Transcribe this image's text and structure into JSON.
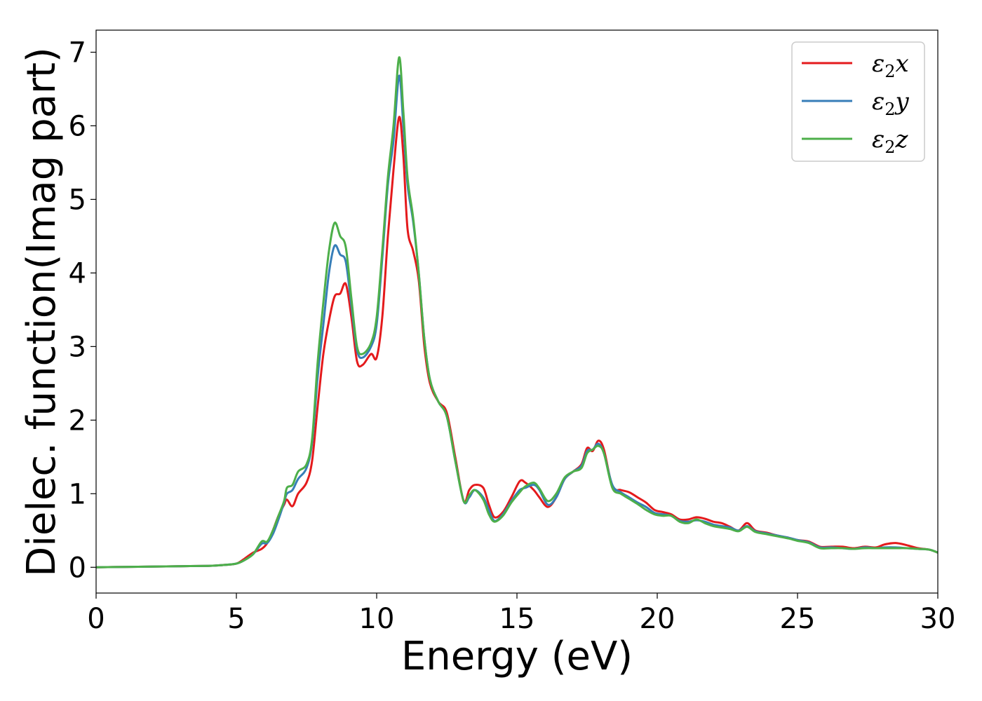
{
  "chart_data": {
    "type": "line",
    "xlabel": "Energy (eV)",
    "ylabel": "Dielec. function(Imag part)",
    "xlim": [
      0,
      30
    ],
    "ylim": [
      -0.35,
      7.3
    ],
    "xticks": [
      0,
      5,
      10,
      15,
      20,
      25,
      30
    ],
    "yticks": [
      0,
      1,
      2,
      3,
      4,
      5,
      6,
      7
    ],
    "grid": false,
    "legend_position": "top-right",
    "series": [
      {
        "name": "ε2x",
        "legend": {
          "base": "ε",
          "sub": "2",
          "suffix": "x"
        },
        "color": "#e41a1c",
        "points": [
          [
            0,
            0.0
          ],
          [
            1,
            0.005
          ],
          [
            2,
            0.01
          ],
          [
            3,
            0.015
          ],
          [
            4,
            0.02
          ],
          [
            4.5,
            0.03
          ],
          [
            5,
            0.05
          ],
          [
            5.3,
            0.12
          ],
          [
            5.6,
            0.2
          ],
          [
            5.9,
            0.25
          ],
          [
            6.1,
            0.33
          ],
          [
            6.3,
            0.5
          ],
          [
            6.5,
            0.7
          ],
          [
            6.7,
            0.85
          ],
          [
            6.8,
            0.92
          ],
          [
            7.0,
            0.83
          ],
          [
            7.2,
            1.0
          ],
          [
            7.5,
            1.15
          ],
          [
            7.7,
            1.45
          ],
          [
            7.9,
            2.2
          ],
          [
            8.1,
            2.9
          ],
          [
            8.3,
            3.35
          ],
          [
            8.5,
            3.68
          ],
          [
            8.7,
            3.72
          ],
          [
            8.9,
            3.85
          ],
          [
            9.1,
            3.4
          ],
          [
            9.3,
            2.8
          ],
          [
            9.5,
            2.75
          ],
          [
            9.8,
            2.9
          ],
          [
            10.0,
            2.85
          ],
          [
            10.2,
            3.4
          ],
          [
            10.4,
            4.5
          ],
          [
            10.6,
            5.4
          ],
          [
            10.8,
            6.12
          ],
          [
            10.95,
            5.6
          ],
          [
            11.1,
            4.6
          ],
          [
            11.3,
            4.3
          ],
          [
            11.5,
            3.9
          ],
          [
            11.7,
            3.0
          ],
          [
            11.9,
            2.5
          ],
          [
            12.2,
            2.25
          ],
          [
            12.5,
            2.1
          ],
          [
            12.8,
            1.5
          ],
          [
            13.1,
            0.9
          ],
          [
            13.3,
            1.05
          ],
          [
            13.5,
            1.12
          ],
          [
            13.8,
            1.08
          ],
          [
            14.0,
            0.85
          ],
          [
            14.2,
            0.68
          ],
          [
            14.5,
            0.75
          ],
          [
            14.8,
            0.95
          ],
          [
            15.1,
            1.17
          ],
          [
            15.3,
            1.15
          ],
          [
            15.6,
            1.05
          ],
          [
            15.8,
            0.95
          ],
          [
            16.1,
            0.82
          ],
          [
            16.4,
            0.95
          ],
          [
            16.7,
            1.2
          ],
          [
            17.0,
            1.3
          ],
          [
            17.3,
            1.4
          ],
          [
            17.5,
            1.62
          ],
          [
            17.7,
            1.58
          ],
          [
            17.9,
            1.72
          ],
          [
            18.1,
            1.6
          ],
          [
            18.4,
            1.1
          ],
          [
            18.7,
            1.05
          ],
          [
            19.0,
            1.02
          ],
          [
            19.3,
            0.95
          ],
          [
            19.6,
            0.88
          ],
          [
            19.9,
            0.78
          ],
          [
            20.2,
            0.75
          ],
          [
            20.5,
            0.72
          ],
          [
            20.8,
            0.65
          ],
          [
            21.1,
            0.65
          ],
          [
            21.4,
            0.68
          ],
          [
            21.7,
            0.66
          ],
          [
            22.0,
            0.62
          ],
          [
            22.3,
            0.6
          ],
          [
            22.6,
            0.55
          ],
          [
            22.9,
            0.5
          ],
          [
            23.2,
            0.6
          ],
          [
            23.5,
            0.5
          ],
          [
            23.9,
            0.47
          ],
          [
            24.3,
            0.43
          ],
          [
            24.7,
            0.4
          ],
          [
            25.0,
            0.37
          ],
          [
            25.4,
            0.35
          ],
          [
            25.8,
            0.28
          ],
          [
            26.2,
            0.28
          ],
          [
            26.6,
            0.28
          ],
          [
            27.0,
            0.26
          ],
          [
            27.4,
            0.28
          ],
          [
            27.8,
            0.27
          ],
          [
            28.1,
            0.31
          ],
          [
            28.5,
            0.33
          ],
          [
            28.9,
            0.3
          ],
          [
            29.3,
            0.26
          ],
          [
            29.7,
            0.24
          ],
          [
            30.0,
            0.2
          ]
        ]
      },
      {
        "name": "ε2y",
        "legend": {
          "base": "ε",
          "sub": "2",
          "suffix": "y"
        },
        "color": "#377eb8",
        "points": [
          [
            0,
            0.0
          ],
          [
            1,
            0.005
          ],
          [
            2,
            0.01
          ],
          [
            3,
            0.015
          ],
          [
            4,
            0.02
          ],
          [
            4.5,
            0.03
          ],
          [
            5,
            0.05
          ],
          [
            5.3,
            0.1
          ],
          [
            5.6,
            0.18
          ],
          [
            5.9,
            0.32
          ],
          [
            6.1,
            0.33
          ],
          [
            6.3,
            0.45
          ],
          [
            6.5,
            0.65
          ],
          [
            6.7,
            0.88
          ],
          [
            6.8,
            1.0
          ],
          [
            7.0,
            1.05
          ],
          [
            7.2,
            1.2
          ],
          [
            7.5,
            1.35
          ],
          [
            7.7,
            1.7
          ],
          [
            7.9,
            2.6
          ],
          [
            8.1,
            3.3
          ],
          [
            8.3,
            4.0
          ],
          [
            8.5,
            4.37
          ],
          [
            8.7,
            4.25
          ],
          [
            8.9,
            4.15
          ],
          [
            9.1,
            3.55
          ],
          [
            9.3,
            2.95
          ],
          [
            9.5,
            2.85
          ],
          [
            9.8,
            3.0
          ],
          [
            10.0,
            3.3
          ],
          [
            10.2,
            4.2
          ],
          [
            10.4,
            5.2
          ],
          [
            10.6,
            5.8
          ],
          [
            10.8,
            6.68
          ],
          [
            10.95,
            6.0
          ],
          [
            11.1,
            5.2
          ],
          [
            11.3,
            4.7
          ],
          [
            11.5,
            4.0
          ],
          [
            11.7,
            3.1
          ],
          [
            11.9,
            2.55
          ],
          [
            12.2,
            2.25
          ],
          [
            12.5,
            2.05
          ],
          [
            12.8,
            1.45
          ],
          [
            13.1,
            0.9
          ],
          [
            13.3,
            0.95
          ],
          [
            13.5,
            1.05
          ],
          [
            13.8,
            0.95
          ],
          [
            14.0,
            0.78
          ],
          [
            14.2,
            0.63
          ],
          [
            14.5,
            0.72
          ],
          [
            14.8,
            0.9
          ],
          [
            15.1,
            1.05
          ],
          [
            15.3,
            1.08
          ],
          [
            15.6,
            1.12
          ],
          [
            15.8,
            1.05
          ],
          [
            16.1,
            0.85
          ],
          [
            16.4,
            0.95
          ],
          [
            16.7,
            1.2
          ],
          [
            17.0,
            1.3
          ],
          [
            17.3,
            1.38
          ],
          [
            17.5,
            1.58
          ],
          [
            17.7,
            1.6
          ],
          [
            17.9,
            1.68
          ],
          [
            18.1,
            1.55
          ],
          [
            18.4,
            1.12
          ],
          [
            18.7,
            1.02
          ],
          [
            19.0,
            0.95
          ],
          [
            19.3,
            0.88
          ],
          [
            19.6,
            0.82
          ],
          [
            19.9,
            0.74
          ],
          [
            20.2,
            0.72
          ],
          [
            20.5,
            0.7
          ],
          [
            20.8,
            0.63
          ],
          [
            21.1,
            0.62
          ],
          [
            21.4,
            0.64
          ],
          [
            21.7,
            0.62
          ],
          [
            22.0,
            0.58
          ],
          [
            22.3,
            0.56
          ],
          [
            22.6,
            0.54
          ],
          [
            22.9,
            0.5
          ],
          [
            23.2,
            0.56
          ],
          [
            23.5,
            0.49
          ],
          [
            23.9,
            0.46
          ],
          [
            24.3,
            0.43
          ],
          [
            24.7,
            0.4
          ],
          [
            25.0,
            0.37
          ],
          [
            25.4,
            0.34
          ],
          [
            25.8,
            0.27
          ],
          [
            26.2,
            0.27
          ],
          [
            26.6,
            0.26
          ],
          [
            27.0,
            0.25
          ],
          [
            27.4,
            0.27
          ],
          [
            27.8,
            0.26
          ],
          [
            28.1,
            0.27
          ],
          [
            28.5,
            0.27
          ],
          [
            28.9,
            0.26
          ],
          [
            29.3,
            0.25
          ],
          [
            29.7,
            0.24
          ],
          [
            30.0,
            0.2
          ]
        ]
      },
      {
        "name": "ε2z",
        "legend": {
          "base": "ε",
          "sub": "2",
          "suffix": "z"
        },
        "color": "#4daf4a",
        "points": [
          [
            0,
            0.0
          ],
          [
            1,
            0.005
          ],
          [
            2,
            0.01
          ],
          [
            3,
            0.015
          ],
          [
            4,
            0.02
          ],
          [
            4.5,
            0.03
          ],
          [
            5,
            0.05
          ],
          [
            5.3,
            0.1
          ],
          [
            5.6,
            0.18
          ],
          [
            5.9,
            0.35
          ],
          [
            6.1,
            0.35
          ],
          [
            6.3,
            0.5
          ],
          [
            6.5,
            0.7
          ],
          [
            6.7,
            0.9
          ],
          [
            6.8,
            1.08
          ],
          [
            7.0,
            1.12
          ],
          [
            7.2,
            1.3
          ],
          [
            7.5,
            1.4
          ],
          [
            7.7,
            1.75
          ],
          [
            7.9,
            2.8
          ],
          [
            8.1,
            3.6
          ],
          [
            8.3,
            4.3
          ],
          [
            8.5,
            4.68
          ],
          [
            8.7,
            4.5
          ],
          [
            8.9,
            4.35
          ],
          [
            9.1,
            3.65
          ],
          [
            9.3,
            3.0
          ],
          [
            9.5,
            2.9
          ],
          [
            9.8,
            3.05
          ],
          [
            10.0,
            3.4
          ],
          [
            10.2,
            4.3
          ],
          [
            10.4,
            5.3
          ],
          [
            10.6,
            6.0
          ],
          [
            10.8,
            6.93
          ],
          [
            10.95,
            6.2
          ],
          [
            11.1,
            5.3
          ],
          [
            11.3,
            4.75
          ],
          [
            11.5,
            4.0
          ],
          [
            11.7,
            3.1
          ],
          [
            11.9,
            2.55
          ],
          [
            12.2,
            2.25
          ],
          [
            12.5,
            2.05
          ],
          [
            12.8,
            1.45
          ],
          [
            13.1,
            0.9
          ],
          [
            13.3,
            0.98
          ],
          [
            13.5,
            1.05
          ],
          [
            13.8,
            0.92
          ],
          [
            14.0,
            0.72
          ],
          [
            14.2,
            0.62
          ],
          [
            14.5,
            0.7
          ],
          [
            14.8,
            0.88
          ],
          [
            15.1,
            1.02
          ],
          [
            15.3,
            1.1
          ],
          [
            15.6,
            1.15
          ],
          [
            15.8,
            1.07
          ],
          [
            16.1,
            0.9
          ],
          [
            16.4,
            1.0
          ],
          [
            16.7,
            1.22
          ],
          [
            17.0,
            1.3
          ],
          [
            17.3,
            1.35
          ],
          [
            17.5,
            1.55
          ],
          [
            17.7,
            1.6
          ],
          [
            17.9,
            1.65
          ],
          [
            18.1,
            1.55
          ],
          [
            18.4,
            1.08
          ],
          [
            18.7,
            1.0
          ],
          [
            19.0,
            0.93
          ],
          [
            19.3,
            0.86
          ],
          [
            19.6,
            0.78
          ],
          [
            19.9,
            0.72
          ],
          [
            20.2,
            0.7
          ],
          [
            20.5,
            0.7
          ],
          [
            20.8,
            0.62
          ],
          [
            21.1,
            0.6
          ],
          [
            21.4,
            0.65
          ],
          [
            21.7,
            0.6
          ],
          [
            22.0,
            0.56
          ],
          [
            22.3,
            0.54
          ],
          [
            22.6,
            0.52
          ],
          [
            22.9,
            0.49
          ],
          [
            23.2,
            0.55
          ],
          [
            23.5,
            0.48
          ],
          [
            23.9,
            0.45
          ],
          [
            24.3,
            0.42
          ],
          [
            24.7,
            0.39
          ],
          [
            25.0,
            0.36
          ],
          [
            25.4,
            0.33
          ],
          [
            25.8,
            0.26
          ],
          [
            26.2,
            0.26
          ],
          [
            26.6,
            0.26
          ],
          [
            27.0,
            0.25
          ],
          [
            27.4,
            0.26
          ],
          [
            27.8,
            0.26
          ],
          [
            28.1,
            0.26
          ],
          [
            28.5,
            0.26
          ],
          [
            28.9,
            0.26
          ],
          [
            29.3,
            0.25
          ],
          [
            29.7,
            0.24
          ],
          [
            30.0,
            0.2
          ]
        ]
      }
    ]
  }
}
